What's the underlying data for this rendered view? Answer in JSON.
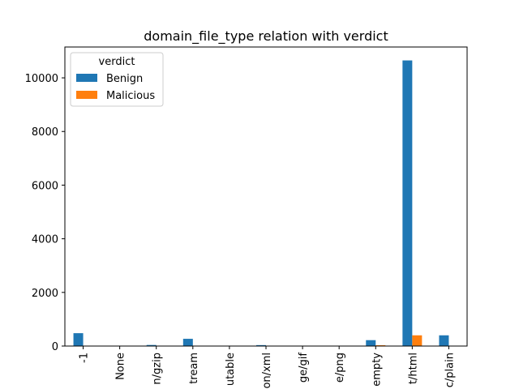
{
  "chart_data": {
    "type": "bar",
    "title": "domain_file_type relation with verdict",
    "xlabel": "",
    "ylabel": "",
    "categories": [
      "-1",
      "None",
      "n/gzip",
      "tream",
      "utable",
      "on/xml",
      "ge/gif",
      "e/png",
      "empty",
      "t/html",
      "c/plain"
    ],
    "series": [
      {
        "name": "Benign",
        "color": "#1f77b4",
        "values": [
          480,
          5,
          40,
          270,
          5,
          35,
          5,
          5,
          220,
          10650,
          400
        ]
      },
      {
        "name": "Malicious",
        "color": "#ff7f0e",
        "values": [
          0,
          0,
          5,
          0,
          0,
          0,
          0,
          0,
          30,
          400,
          0
        ]
      }
    ],
    "ylim": [
      0,
      11150
    ],
    "yticks": [
      0,
      2000,
      4000,
      6000,
      8000,
      10000
    ],
    "legend": {
      "title": "verdict",
      "placement": "upper-left"
    },
    "grid": false
  }
}
